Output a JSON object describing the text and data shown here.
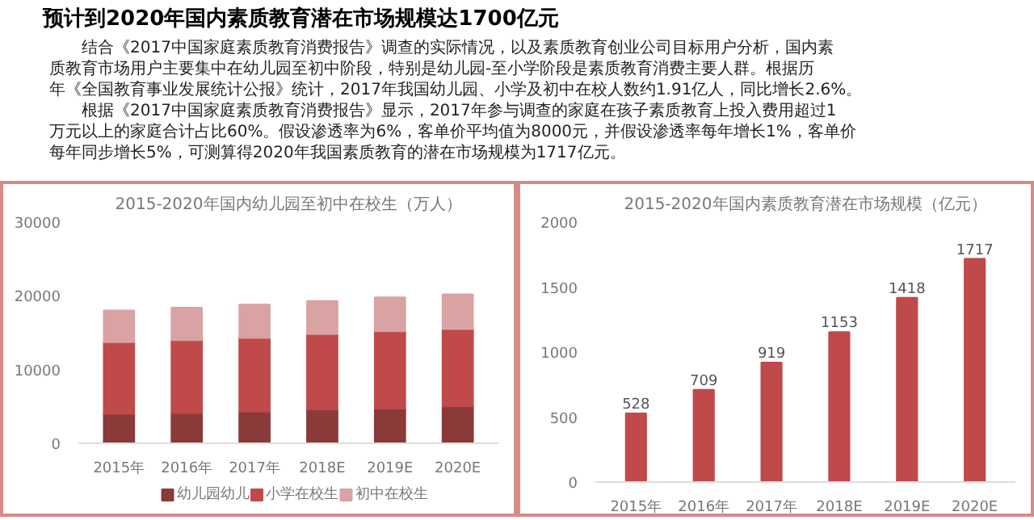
{
  "chart_data": [
    {
      "type": "other",
      "title": "预计到2020年国内素质教育潜在市场规模达1700亿元",
      "annotations": [
        "结合《2017中国家庭素质教育消费报告》调查的实际情况，以及素质教育创业公司目标用户分析，国内素质教育市场用户主要集中在幼儿园至初中阶段，特别是幼儿园-至小学阶段是素质教育消费主要人群。根据历年《全国教育事业发展统计公报》统计，2017年我国幼儿园、小学及初中在校人数约1.91亿人，同比增长2.6%。",
        "根据《2017中国家庭素质教育消费报告》显示，2017年参与调查的家庭在孩子素质教育上投入费用超过1 万元以上的家庭合计占比60%。假设渗透率为6%，客单价平均值为8000元，并假设渗透率每年增长1%，客单价每年同步增长5%，可测算得2020年我国素质教育的潜在市场规模为1717亿元。"
      ]
    },
    {
      "type": "bar",
      "stacked": true,
      "title": "2015-2020年国内幼儿园至初中在校生（万人）",
      "categories": [
        "2015年",
        "2016年",
        "2017年",
        "2018E",
        "2019E",
        "2020E"
      ],
      "series": [
        {
          "name": "幼儿园幼儿",
          "color": "#8b3a3a",
          "values": [
            4000,
            4100,
            4300,
            4600,
            4700,
            5000
          ]
        },
        {
          "name": "小学在校生",
          "color": "#c0494a",
          "values": [
            9700,
            9900,
            10000,
            10200,
            10500,
            10500
          ]
        },
        {
          "name": "初中在校生",
          "color": "#d9a3a3",
          "values": [
            4300,
            4400,
            4500,
            4500,
            4600,
            4700
          ]
        }
      ],
      "ylim": [
        0,
        30000
      ],
      "yticks": [
        0,
        10000,
        20000,
        30000
      ],
      "legend": "bottom"
    },
    {
      "type": "bar",
      "title": "2015-2020年国内素质教育潜在市场规模（亿元）",
      "categories": [
        "2015年",
        "2016年",
        "2017年",
        "2018E",
        "2019E",
        "2020E"
      ],
      "values": [
        528,
        709,
        919,
        1153,
        1418,
        1717
      ],
      "color": "#c0494a",
      "data_labels": true,
      "ylim": [
        0,
        2000
      ],
      "yticks": [
        0,
        500,
        1000,
        1500,
        2000
      ]
    }
  ]
}
